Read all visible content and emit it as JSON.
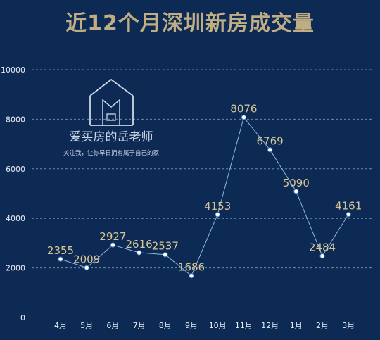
{
  "chart_data": {
    "type": "line",
    "title": "近12个月深圳新房成交量",
    "categories": [
      "4月",
      "5月",
      "6月",
      "7月",
      "8月",
      "9月",
      "10月",
      "11月",
      "12月",
      "1月",
      "2月",
      "3月"
    ],
    "values": [
      2355,
      2009,
      2927,
      2616,
      2537,
      1686,
      4153,
      8076,
      6769,
      5090,
      2484,
      4161
    ],
    "data_labels": [
      "2355",
      "2009",
      "2927",
      "2616",
      "2537",
      "1686",
      "4153",
      "8076",
      "6769",
      "5090",
      "2484",
      "4161"
    ],
    "yticks": [
      "0",
      "2000",
      "4000",
      "6000",
      "8000",
      "10000"
    ],
    "ylim": [
      0,
      10000
    ],
    "grid": true,
    "colors": {
      "line": "#8fb4e6",
      "label": "#d8c595",
      "title": "#bfae84",
      "background": "#0d2a55"
    }
  },
  "watermark": {
    "name": "爱买房的岳老师",
    "slogan": "关注我，让你早日拥有属于自己的家",
    "icon": "house-icon"
  }
}
